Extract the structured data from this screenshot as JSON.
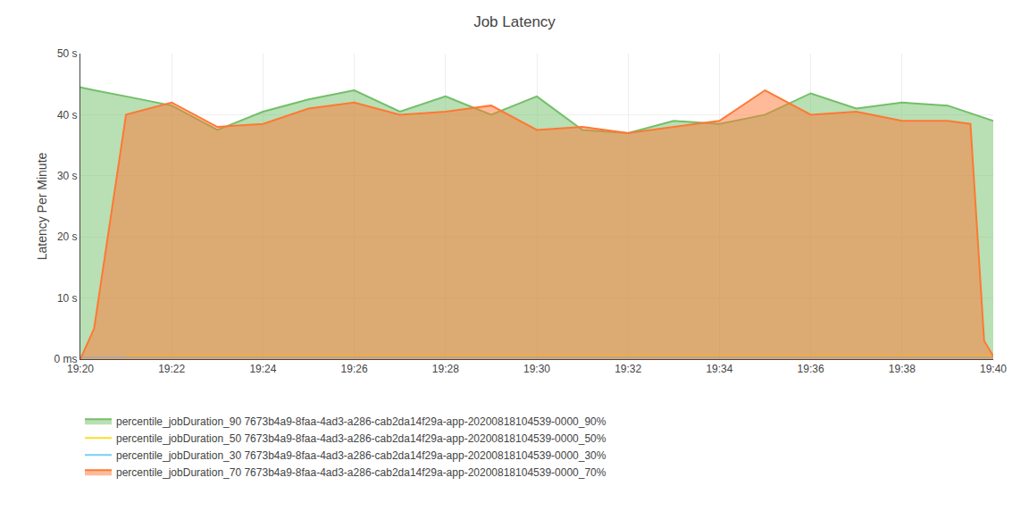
{
  "chart_data": {
    "type": "line",
    "title": "Job Latency",
    "y_label": "Latency Per Minute",
    "xlim": [
      0,
      20
    ],
    "xticks": [
      {
        "value": 0,
        "label": "19:20"
      },
      {
        "value": 2,
        "label": "19:22"
      },
      {
        "value": 4,
        "label": "19:24"
      },
      {
        "value": 6,
        "label": "19:26"
      },
      {
        "value": 8,
        "label": "19:28"
      },
      {
        "value": 10,
        "label": "19:30"
      },
      {
        "value": 12,
        "label": "19:32"
      },
      {
        "value": 14,
        "label": "19:34"
      },
      {
        "value": 16,
        "label": "19:36"
      },
      {
        "value": 18,
        "label": "19:38"
      },
      {
        "value": 20,
        "label": "19:40"
      }
    ],
    "ylim": [
      0,
      50
    ],
    "yticks": [
      {
        "value": 0,
        "label": "0 ms"
      },
      {
        "value": 10,
        "label": "10 s"
      },
      {
        "value": 20,
        "label": "20 s"
      },
      {
        "value": 30,
        "label": "30 s"
      },
      {
        "value": 40,
        "label": "40 s"
      },
      {
        "value": 50,
        "label": "50 s"
      }
    ],
    "grid": true,
    "legend": "lower left",
    "series": [
      {
        "name": "percentile_jobDuration_90 7673b4a9-8faa-4ad3-a286-cab2da14f29a-app-20200818104539-0000_90%",
        "color": "#73bf69",
        "type": "area",
        "x": [
          0,
          0.3,
          1.0,
          2.0,
          3.0,
          4.0,
          5.0,
          6.0,
          7.0,
          8.0,
          9.0,
          10.0,
          11.0,
          12.0,
          13.0,
          14.0,
          15.0,
          16.0,
          17.0,
          18.0,
          19.0,
          20.0
        ],
        "values": [
          44.5,
          44.0,
          43.0,
          41.5,
          37.5,
          40.5,
          42.5,
          44.0,
          40.5,
          43.0,
          40.0,
          43.0,
          37.5,
          37.0,
          39.0,
          38.5,
          40.0,
          43.5,
          41.0,
          42.0,
          41.5,
          39.0
        ]
      },
      {
        "name": "percentile_jobDuration_50 7673b4a9-8faa-4ad3-a286-cab2da14f29a-app-20200818104539-0000_50%",
        "color": "#fade2a",
        "type": "line",
        "x": [
          1.0,
          19.5,
          19.8,
          20.0
        ],
        "values": [
          0.5,
          0.5,
          0.5,
          0.5
        ]
      },
      {
        "name": "percentile_jobDuration_30 7673b4a9-8faa-4ad3-a286-cab2da14f29a-app-20200818104539-0000_30%",
        "color": "#73d0f4",
        "type": "line",
        "x": [
          0.0,
          19.5,
          19.8,
          20.0
        ],
        "values": [
          0.3,
          0.3,
          0.3,
          0.3
        ]
      },
      {
        "name": "percentile_jobDuration_70 7673b4a9-8faa-4ad3-a286-cab2da14f29a-app-20200818104539-0000_70%",
        "color": "#ff7833",
        "type": "area",
        "x": [
          0.0,
          0.3,
          1.0,
          2.0,
          3.0,
          4.0,
          5.0,
          6.0,
          7.0,
          8.0,
          9.0,
          10.0,
          11.0,
          12.0,
          13.0,
          14.0,
          15.0,
          16.0,
          17.0,
          18.0,
          19.0,
          19.5,
          19.8,
          20.0
        ],
        "values": [
          0.0,
          5.0,
          40.0,
          42.0,
          38.0,
          38.5,
          41.0,
          42.0,
          40.0,
          40.5,
          41.5,
          37.5,
          38.0,
          37.0,
          38.0,
          39.0,
          44.0,
          40.0,
          40.5,
          39.0,
          39.0,
          38.5,
          3.0,
          0.5
        ]
      }
    ]
  }
}
